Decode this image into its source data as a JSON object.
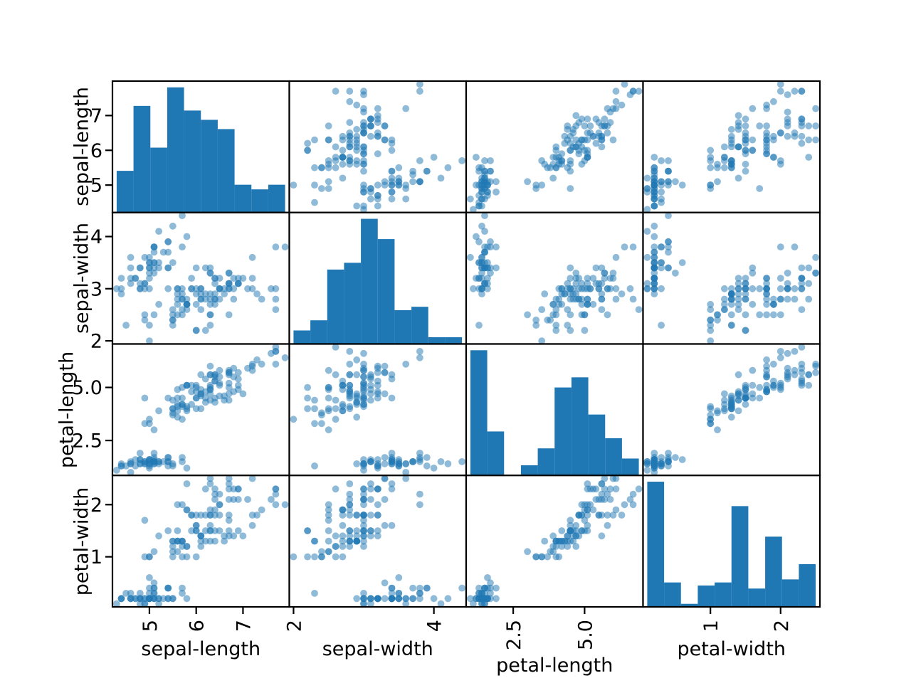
{
  "styles": {
    "background": "#ffffff",
    "point_color": "#1f77b4",
    "point_opacity": 0.5,
    "hist_color": "#1f77b4",
    "spine_color": "#000000",
    "tick_color": "#000000",
    "text_color": "#000000"
  },
  "chart_data": {
    "type": "scatter_matrix",
    "title": "",
    "diagonal": "histogram",
    "hist_bins": 10,
    "grid": false,
    "axes": [
      {
        "name": "sepal-length",
        "range": [
          4.21,
          7.99
        ],
        "xticks": [
          {
            "v": 5,
            "label": "5"
          },
          {
            "v": 6,
            "label": "6"
          },
          {
            "v": 7,
            "label": "7"
          }
        ],
        "yticks": [
          {
            "v": 5,
            "label": "5"
          },
          {
            "v": 6,
            "label": "6"
          },
          {
            "v": 7,
            "label": "7"
          }
        ]
      },
      {
        "name": "sepal-width",
        "range": [
          1.94,
          4.46
        ],
        "xticks": [
          {
            "v": 2,
            "label": "2"
          },
          {
            "v": 4,
            "label": "4"
          }
        ],
        "yticks": [
          {
            "v": 2,
            "label": "2"
          },
          {
            "v": 3,
            "label": "3"
          },
          {
            "v": 4,
            "label": "4"
          }
        ]
      },
      {
        "name": "petal-length",
        "range": [
          0.8525,
          7.0475
        ],
        "xticks": [
          {
            "v": 2.5,
            "label": "2.5"
          },
          {
            "v": 5.0,
            "label": "5.0"
          }
        ],
        "yticks": [
          {
            "v": 2.5,
            "label": "2.5"
          },
          {
            "v": 5.0,
            "label": "5.0"
          }
        ]
      },
      {
        "name": "petal-width",
        "range": [
          0.04,
          2.56
        ],
        "xticks": [
          {
            "v": 1,
            "label": "1"
          },
          {
            "v": 2,
            "label": "2"
          }
        ],
        "yticks": [
          {
            "v": 1,
            "label": "1"
          },
          {
            "v": 2,
            "label": "2"
          }
        ]
      }
    ],
    "columns": {
      "sepal_length": [
        5.1,
        4.9,
        4.7,
        4.6,
        5.0,
        5.4,
        4.6,
        5.0,
        4.4,
        4.9,
        5.4,
        4.8,
        4.8,
        4.3,
        5.8,
        5.7,
        5.4,
        5.1,
        5.7,
        5.1,
        5.4,
        5.1,
        4.6,
        5.1,
        4.8,
        5.0,
        5.0,
        5.2,
        5.2,
        4.7,
        4.8,
        5.4,
        5.2,
        5.5,
        4.9,
        5.0,
        5.5,
        4.9,
        4.4,
        5.1,
        5.0,
        4.5,
        4.4,
        5.0,
        5.1,
        4.8,
        5.1,
        4.6,
        5.3,
        5.0,
        7.0,
        6.4,
        6.9,
        5.5,
        6.5,
        5.7,
        6.3,
        4.9,
        6.6,
        5.2,
        5.0,
        5.9,
        6.0,
        6.1,
        5.6,
        6.7,
        5.6,
        5.8,
        6.2,
        5.6,
        5.9,
        6.1,
        6.3,
        6.1,
        6.4,
        6.6,
        6.8,
        6.7,
        6.0,
        5.7,
        5.5,
        5.5,
        5.8,
        6.0,
        5.4,
        6.0,
        6.7,
        6.3,
        5.6,
        5.5,
        5.5,
        6.1,
        5.8,
        5.0,
        5.6,
        5.7,
        5.7,
        6.2,
        5.1,
        5.7,
        6.3,
        5.8,
        7.1,
        6.3,
        6.5,
        7.6,
        4.9,
        7.3,
        6.7,
        7.2,
        6.5,
        6.4,
        6.8,
        5.7,
        5.8,
        6.4,
        6.5,
        7.7,
        7.7,
        6.0,
        6.9,
        5.6,
        7.7,
        6.3,
        6.7,
        7.2,
        6.2,
        6.1,
        6.4,
        7.2,
        7.4,
        7.9,
        6.4,
        6.3,
        6.1,
        7.7,
        6.3,
        6.4,
        6.0,
        6.9,
        6.7,
        6.9,
        5.8,
        6.8,
        6.7,
        6.7,
        6.3,
        6.5,
        6.2,
        5.9
      ],
      "sepal_width": [
        3.5,
        3.0,
        3.2,
        3.1,
        3.6,
        3.9,
        3.4,
        3.4,
        2.9,
        3.1,
        3.7,
        3.4,
        3.0,
        3.0,
        4.0,
        4.4,
        3.9,
        3.5,
        3.8,
        3.8,
        3.4,
        3.7,
        3.6,
        3.3,
        3.4,
        3.0,
        3.4,
        3.5,
        3.4,
        3.2,
        3.1,
        3.4,
        4.1,
        4.2,
        3.1,
        3.2,
        3.5,
        3.6,
        3.0,
        3.4,
        3.5,
        2.3,
        3.2,
        3.5,
        3.8,
        3.0,
        3.8,
        3.2,
        3.7,
        3.3,
        3.2,
        3.2,
        3.1,
        2.3,
        2.8,
        2.8,
        3.3,
        2.4,
        2.9,
        2.7,
        2.0,
        3.0,
        2.2,
        2.9,
        2.9,
        3.1,
        3.0,
        2.7,
        2.2,
        2.5,
        3.2,
        2.8,
        2.5,
        2.8,
        2.9,
        3.0,
        2.8,
        3.0,
        2.9,
        2.6,
        2.4,
        2.4,
        2.7,
        2.7,
        3.0,
        3.4,
        3.1,
        2.3,
        3.0,
        2.5,
        2.6,
        3.0,
        2.6,
        2.3,
        2.7,
        3.0,
        2.9,
        2.9,
        2.5,
        2.8,
        3.3,
        2.7,
        3.0,
        2.9,
        3.0,
        3.0,
        2.5,
        2.9,
        2.5,
        3.6,
        3.2,
        2.7,
        3.0,
        2.5,
        2.8,
        3.2,
        3.0,
        3.8,
        2.6,
        2.2,
        3.2,
        2.8,
        2.8,
        2.7,
        3.3,
        3.2,
        2.8,
        3.0,
        2.8,
        3.0,
        2.8,
        3.8,
        2.8,
        2.8,
        2.6,
        3.0,
        3.4,
        3.1,
        3.0,
        3.1,
        3.1,
        3.1,
        2.7,
        3.2,
        3.3,
        3.0,
        2.5,
        3.0,
        3.4,
        3.0
      ],
      "petal_length": [
        1.4,
        1.4,
        1.3,
        1.5,
        1.4,
        1.7,
        1.4,
        1.5,
        1.4,
        1.5,
        1.5,
        1.6,
        1.4,
        1.1,
        1.2,
        1.5,
        1.3,
        1.4,
        1.7,
        1.5,
        1.7,
        1.5,
        1.0,
        1.7,
        1.9,
        1.6,
        1.6,
        1.5,
        1.4,
        1.6,
        1.6,
        1.5,
        1.5,
        1.4,
        1.5,
        1.2,
        1.3,
        1.4,
        1.3,
        1.5,
        1.3,
        1.3,
        1.3,
        1.6,
        1.9,
        1.4,
        1.6,
        1.4,
        1.5,
        1.4,
        4.7,
        4.5,
        4.9,
        4.0,
        4.6,
        4.5,
        4.7,
        3.3,
        4.6,
        3.9,
        3.5,
        4.2,
        4.0,
        4.7,
        3.6,
        4.4,
        4.5,
        4.1,
        4.5,
        3.9,
        4.8,
        4.0,
        4.9,
        4.7,
        4.3,
        4.4,
        4.8,
        5.0,
        4.5,
        3.5,
        3.8,
        3.7,
        3.9,
        5.1,
        4.5,
        4.5,
        4.7,
        4.4,
        4.1,
        4.0,
        4.4,
        4.6,
        4.0,
        3.3,
        4.2,
        4.2,
        4.2,
        4.3,
        3.0,
        4.1,
        6.0,
        5.1,
        5.9,
        5.6,
        5.8,
        6.6,
        4.5,
        6.3,
        5.8,
        6.1,
        5.1,
        5.3,
        5.5,
        5.0,
        5.1,
        5.3,
        5.5,
        6.7,
        6.9,
        5.0,
        5.7,
        4.9,
        6.7,
        4.9,
        5.7,
        6.0,
        4.8,
        4.9,
        5.6,
        5.8,
        6.1,
        6.4,
        5.6,
        5.1,
        5.6,
        6.1,
        5.6,
        5.5,
        4.8,
        5.4,
        5.6,
        5.1,
        5.1,
        5.9,
        5.7,
        5.2,
        5.0,
        5.2,
        5.4,
        5.1
      ],
      "petal_width": [
        0.2,
        0.2,
        0.2,
        0.2,
        0.2,
        0.4,
        0.3,
        0.2,
        0.2,
        0.1,
        0.2,
        0.2,
        0.1,
        0.1,
        0.2,
        0.4,
        0.4,
        0.3,
        0.3,
        0.3,
        0.2,
        0.4,
        0.2,
        0.5,
        0.2,
        0.2,
        0.4,
        0.2,
        0.2,
        0.2,
        0.2,
        0.4,
        0.1,
        0.2,
        0.2,
        0.2,
        0.2,
        0.1,
        0.2,
        0.2,
        0.3,
        0.3,
        0.2,
        0.6,
        0.4,
        0.3,
        0.2,
        0.2,
        0.2,
        0.2,
        1.4,
        1.5,
        1.5,
        1.3,
        1.5,
        1.3,
        1.6,
        1.0,
        1.3,
        1.4,
        1.0,
        1.5,
        1.0,
        1.4,
        1.3,
        1.4,
        1.5,
        1.0,
        1.5,
        1.1,
        1.8,
        1.3,
        1.5,
        1.2,
        1.3,
        1.4,
        1.4,
        1.7,
        1.5,
        1.0,
        1.1,
        1.0,
        1.2,
        1.6,
        1.5,
        1.6,
        1.5,
        1.3,
        1.3,
        1.3,
        1.2,
        1.4,
        1.2,
        1.0,
        1.3,
        1.2,
        1.3,
        1.3,
        1.1,
        1.3,
        2.5,
        1.9,
        2.1,
        1.8,
        2.2,
        2.1,
        1.7,
        1.8,
        1.8,
        2.5,
        2.0,
        1.9,
        2.1,
        2.0,
        2.4,
        2.3,
        1.8,
        2.2,
        2.3,
        1.5,
        2.3,
        2.0,
        2.0,
        1.8,
        2.1,
        1.8,
        1.8,
        1.8,
        2.1,
        1.6,
        1.9,
        2.0,
        2.2,
        1.5,
        1.4,
        2.3,
        2.4,
        1.8,
        1.8,
        2.1,
        2.4,
        2.3,
        1.9,
        2.3,
        2.5,
        2.3,
        1.9,
        2.0,
        2.3,
        1.8
      ]
    }
  }
}
